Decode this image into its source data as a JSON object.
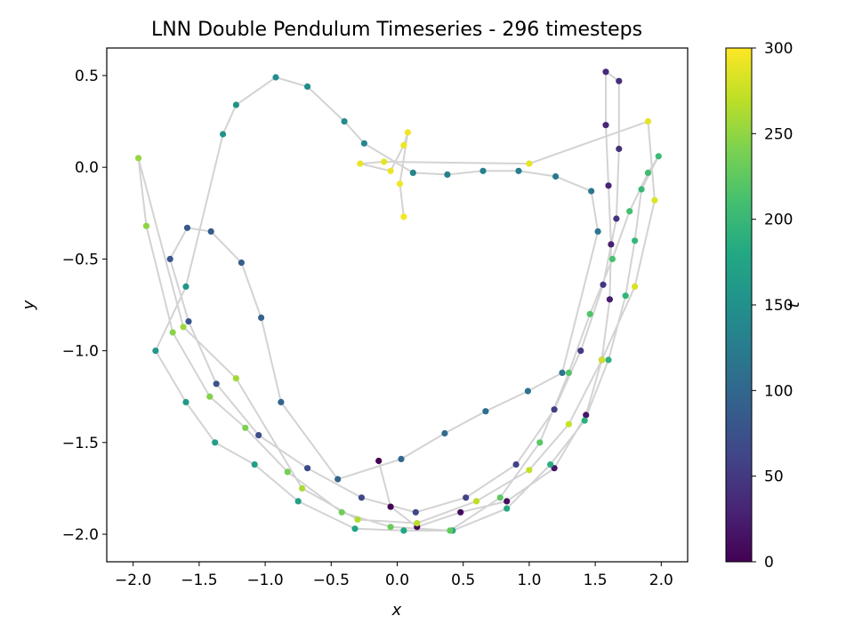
{
  "chart_data": {
    "type": "scatter",
    "title": "LNN Double Pendulum Timeseries - 296 timesteps",
    "xlabel": "x",
    "ylabel": "y",
    "xlim": [
      -2.2,
      2.2
    ],
    "ylim": [
      -2.15,
      0.65
    ],
    "xticks": [
      -2.0,
      -1.5,
      -1.0,
      -0.5,
      0.0,
      0.5,
      1.0,
      1.5,
      2.0
    ],
    "xtick_labels": [
      "−2.0",
      "−1.5",
      "−1.0",
      "−0.5",
      "0.0",
      "0.5",
      "1.0",
      "1.5",
      "2.0"
    ],
    "yticks": [
      0.5,
      0.0,
      -0.5,
      -1.0,
      -1.5,
      -2.0
    ],
    "ytick_labels": [
      "0.5",
      "0.0",
      "−0.5",
      "−1.0",
      "−1.5",
      "−2.0"
    ],
    "grid": false,
    "line_color": "#d3d3d3",
    "colormap": "viridis",
    "colorbar": {
      "label": "t",
      "range": [
        0,
        300
      ],
      "ticks": [
        0,
        50,
        100,
        150,
        200,
        250,
        300
      ],
      "tick_labels": [
        "0",
        "50",
        "100",
        "150",
        "200",
        "250",
        "300"
      ]
    },
    "series": [
      {
        "points": [
          {
            "x": -0.14,
            "y": -1.6,
            "t": 0
          },
          {
            "x": -0.05,
            "y": -1.85,
            "t": 3
          },
          {
            "x": 0.15,
            "y": -1.96,
            "t": 6
          },
          {
            "x": 0.48,
            "y": -1.88,
            "t": 9
          },
          {
            "x": 0.83,
            "y": -1.82,
            "t": 12
          },
          {
            "x": 1.19,
            "y": -1.64,
            "t": 15
          },
          {
            "x": 1.43,
            "y": -1.35,
            "t": 18
          },
          {
            "x": 1.55,
            "y": -1.05,
            "t": 21
          },
          {
            "x": 1.61,
            "y": -0.72,
            "t": 24
          },
          {
            "x": 1.62,
            "y": -0.42,
            "t": 27
          },
          {
            "x": 1.6,
            "y": -0.1,
            "t": 30
          },
          {
            "x": 1.58,
            "y": 0.23,
            "t": 33
          },
          {
            "x": 1.58,
            "y": 0.52,
            "t": 36
          },
          {
            "x": 1.68,
            "y": 0.47,
            "t": 39
          },
          {
            "x": 1.68,
            "y": 0.1,
            "t": 42
          },
          {
            "x": 1.66,
            "y": -0.28,
            "t": 45
          },
          {
            "x": 1.56,
            "y": -0.64,
            "t": 48
          },
          {
            "x": 1.39,
            "y": -1.0,
            "t": 51
          },
          {
            "x": 1.19,
            "y": -1.32,
            "t": 54
          },
          {
            "x": 0.9,
            "y": -1.62,
            "t": 57
          },
          {
            "x": 0.52,
            "y": -1.8,
            "t": 60
          },
          {
            "x": 0.14,
            "y": -1.88,
            "t": 63
          },
          {
            "x": -0.27,
            "y": -1.8,
            "t": 66
          },
          {
            "x": -0.68,
            "y": -1.64,
            "t": 69
          },
          {
            "x": -1.05,
            "y": -1.46,
            "t": 72
          },
          {
            "x": -1.37,
            "y": -1.18,
            "t": 75
          },
          {
            "x": -1.58,
            "y": -0.84,
            "t": 78
          },
          {
            "x": -1.72,
            "y": -0.5,
            "t": 81
          },
          {
            "x": -1.59,
            "y": -0.33,
            "t": 84
          },
          {
            "x": -1.41,
            "y": -0.35,
            "t": 87
          },
          {
            "x": -1.18,
            "y": -0.52,
            "t": 90
          },
          {
            "x": -1.03,
            "y": -0.82,
            "t": 93
          },
          {
            "x": -0.88,
            "y": -1.28,
            "t": 96
          },
          {
            "x": -0.45,
            "y": -1.7,
            "t": 99
          },
          {
            "x": 0.03,
            "y": -1.59,
            "t": 102
          },
          {
            "x": 0.36,
            "y": -1.45,
            "t": 105
          },
          {
            "x": 0.67,
            "y": -1.33,
            "t": 108
          },
          {
            "x": 0.99,
            "y": -1.22,
            "t": 111
          },
          {
            "x": 1.25,
            "y": -1.12,
            "t": 114
          },
          {
            "x": 1.52,
            "y": -0.35,
            "t": 117
          },
          {
            "x": 1.47,
            "y": -0.13,
            "t": 120
          },
          {
            "x": 1.2,
            "y": -0.05,
            "t": 123
          },
          {
            "x": 0.92,
            "y": -0.02,
            "t": 126
          },
          {
            "x": 0.65,
            "y": -0.02,
            "t": 129
          },
          {
            "x": 0.38,
            "y": -0.04,
            "t": 132
          },
          {
            "x": 0.12,
            "y": -0.03,
            "t": 135
          },
          {
            "x": -0.25,
            "y": 0.13,
            "t": 138
          },
          {
            "x": -0.4,
            "y": 0.25,
            "t": 141
          },
          {
            "x": -0.68,
            "y": 0.44,
            "t": 144
          },
          {
            "x": -0.92,
            "y": 0.49,
            "t": 147
          },
          {
            "x": -1.22,
            "y": 0.34,
            "t": 150
          },
          {
            "x": -1.32,
            "y": 0.18,
            "t": 153
          },
          {
            "x": -1.6,
            "y": -0.65,
            "t": 156
          },
          {
            "x": -1.83,
            "y": -1.0,
            "t": 159
          },
          {
            "x": -1.6,
            "y": -1.28,
            "t": 162
          },
          {
            "x": -1.38,
            "y": -1.5,
            "t": 165
          },
          {
            "x": -1.08,
            "y": -1.62,
            "t": 168
          },
          {
            "x": -0.75,
            "y": -1.82,
            "t": 171
          },
          {
            "x": -0.32,
            "y": -1.97,
            "t": 174
          },
          {
            "x": 0.05,
            "y": -1.98,
            "t": 177
          },
          {
            "x": 0.42,
            "y": -1.98,
            "t": 180
          },
          {
            "x": 0.83,
            "y": -1.86,
            "t": 183
          },
          {
            "x": 1.16,
            "y": -1.62,
            "t": 186
          },
          {
            "x": 1.42,
            "y": -1.38,
            "t": 189
          },
          {
            "x": 1.6,
            "y": -1.05,
            "t": 192
          },
          {
            "x": 1.73,
            "y": -0.7,
            "t": 195
          },
          {
            "x": 1.8,
            "y": -0.4,
            "t": 198
          },
          {
            "x": 1.85,
            "y": -0.12,
            "t": 201
          },
          {
            "x": 1.98,
            "y": 0.06,
            "t": 204
          },
          {
            "x": 1.9,
            "y": -0.03,
            "t": 207
          },
          {
            "x": 1.76,
            "y": -0.24,
            "t": 210
          },
          {
            "x": 1.63,
            "y": -0.5,
            "t": 213
          },
          {
            "x": 1.46,
            "y": -0.8,
            "t": 216
          },
          {
            "x": 1.3,
            "y": -1.12,
            "t": 219
          },
          {
            "x": 1.08,
            "y": -1.5,
            "t": 222
          },
          {
            "x": 0.78,
            "y": -1.8,
            "t": 225
          },
          {
            "x": 0.4,
            "y": -1.98,
            "t": 228
          },
          {
            "x": -0.05,
            "y": -1.96,
            "t": 231
          },
          {
            "x": -0.42,
            "y": -1.88,
            "t": 234
          },
          {
            "x": -0.83,
            "y": -1.66,
            "t": 237
          },
          {
            "x": -1.15,
            "y": -1.42,
            "t": 240
          },
          {
            "x": -1.42,
            "y": -1.25,
            "t": 243
          },
          {
            "x": -1.7,
            "y": -0.9,
            "t": 246
          },
          {
            "x": -1.9,
            "y": -0.32,
            "t": 249
          },
          {
            "x": -1.96,
            "y": 0.05,
            "t": 252
          },
          {
            "x": -1.62,
            "y": -0.87,
            "t": 255
          },
          {
            "x": -1.22,
            "y": -1.15,
            "t": 258
          },
          {
            "x": -0.72,
            "y": -1.75,
            "t": 261
          },
          {
            "x": -0.3,
            "y": -1.92,
            "t": 264
          },
          {
            "x": 0.15,
            "y": -1.94,
            "t": 267
          },
          {
            "x": 0.6,
            "y": -1.82,
            "t": 270
          },
          {
            "x": 1.0,
            "y": -1.65,
            "t": 273
          },
          {
            "x": 1.3,
            "y": -1.4,
            "t": 276
          },
          {
            "x": 1.55,
            "y": -1.05,
            "t": 279
          },
          {
            "x": 1.8,
            "y": -0.65,
            "t": 282
          },
          {
            "x": 1.95,
            "y": -0.18,
            "t": 285
          },
          {
            "x": 1.9,
            "y": 0.25,
            "t": 288
          },
          {
            "x": 1.0,
            "y": 0.02,
            "t": 289
          },
          {
            "x": -0.1,
            "y": 0.03,
            "t": 290
          },
          {
            "x": -0.28,
            "y": 0.02,
            "t": 291
          },
          {
            "x": -0.05,
            "y": -0.02,
            "t": 292
          },
          {
            "x": 0.05,
            "y": 0.12,
            "t": 293
          },
          {
            "x": 0.08,
            "y": 0.19,
            "t": 294
          },
          {
            "x": 0.02,
            "y": -0.09,
            "t": 295
          },
          {
            "x": 0.05,
            "y": -0.27,
            "t": 296
          }
        ]
      }
    ]
  }
}
